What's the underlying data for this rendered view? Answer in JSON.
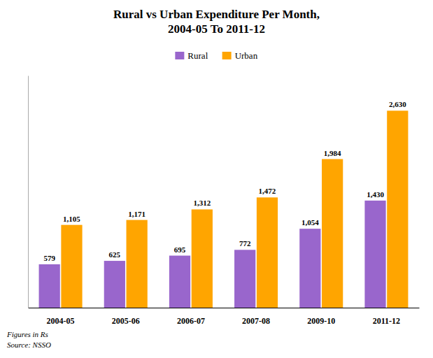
{
  "chart_data": {
    "type": "bar",
    "title": "Rural vs Urban Expenditure Per Month,\n2004-05 To 2011-12",
    "categories": [
      "2004-05",
      "2005-06",
      "2006-07",
      "2007-08",
      "2009-10",
      "2011-12"
    ],
    "series": [
      {
        "name": "Rural",
        "color": "#9966CC",
        "values": [
          579,
          625,
          695,
          772,
          1054,
          1430
        ],
        "value_labels": [
          "579",
          "625",
          "695",
          "772",
          "1,054",
          "1,430"
        ]
      },
      {
        "name": "Urban",
        "color": "#FFA500",
        "values": [
          1105,
          1171,
          1312,
          1472,
          1984,
          2630
        ],
        "value_labels": [
          "1,105",
          "1,171",
          "1,312",
          "1,472",
          "1,984",
          "2,630"
        ]
      }
    ],
    "ylim": [
      0,
      3100
    ],
    "tick_labels": "x",
    "grid": false,
    "legend": "top",
    "data_labels": true,
    "annotations": [
      "Figures in Rs",
      "Source: NSSO"
    ]
  }
}
